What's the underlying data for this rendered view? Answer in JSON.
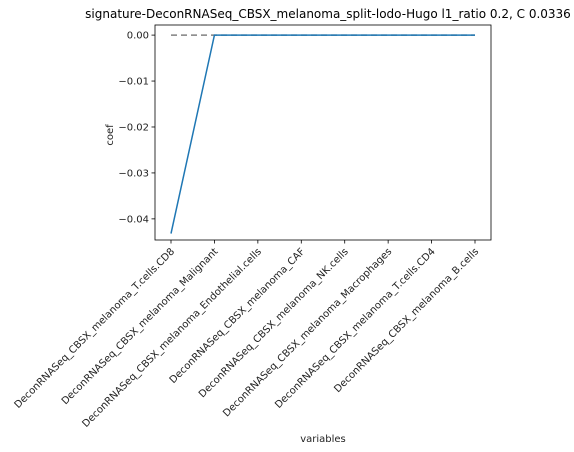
{
  "chart_data": {
    "type": "line",
    "title": "signature-DeconRNASeq_CBSX_melanoma_split-lodo-Hugo l1_ratio 0.2, C 0.0336",
    "xlabel": "variables",
    "ylabel": "coef",
    "categories": [
      "DeconRNASeq_CBSX_melanoma_T.cells.CD8",
      "DeconRNASeq_CBSX_melanoma_Malignant",
      "DeconRNASeq_CBSX_melanoma_Endothelial.cells",
      "DeconRNASeq_CBSX_melanoma_CAF",
      "DeconRNASeq_CBSX_melanoma_NK.cells",
      "DeconRNASeq_CBSX_melanoma_Macrophages",
      "DeconRNASeq_CBSX_melanoma_T.cells.CD4",
      "DeconRNASeq_CBSX_melanoma_B.cells"
    ],
    "series": [
      {
        "values": [
          -0.0432,
          0.0,
          0.0,
          0.0,
          0.0,
          0.0,
          0.0,
          0.0
        ],
        "color": "#1f77b4"
      }
    ],
    "reference_line": {
      "y": 0.0,
      "style": "dashed",
      "color": "#808080"
    },
    "yticks": [
      0.0,
      -0.01,
      -0.02,
      -0.03,
      -0.04
    ],
    "ytick_labels": [
      "0.00",
      "−0.01",
      "−0.02",
      "−0.03",
      "−0.04"
    ],
    "ylim": [
      -0.0446,
      0.0022
    ],
    "grid": false,
    "legend": "none"
  }
}
